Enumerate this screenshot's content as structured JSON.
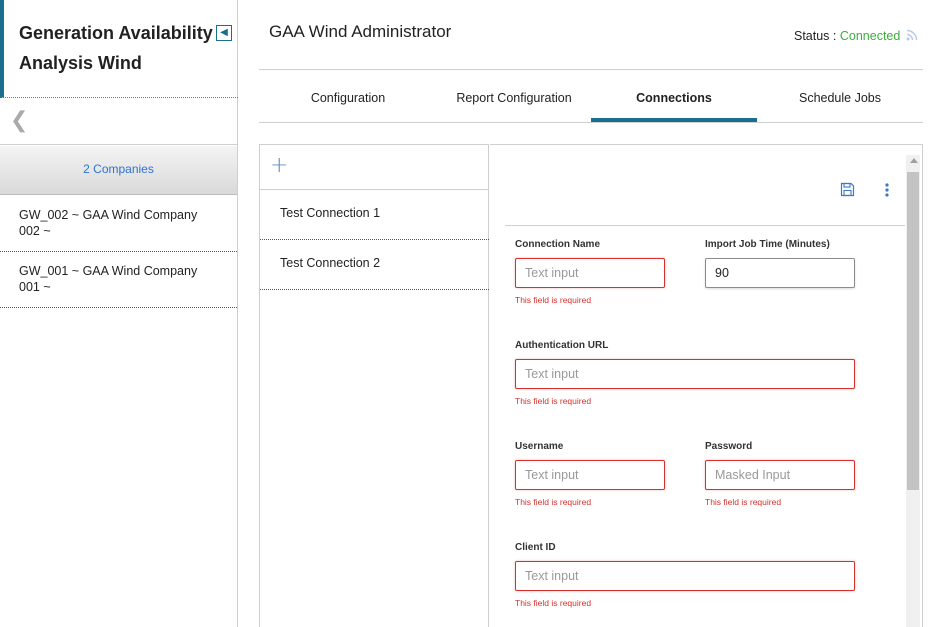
{
  "sidebar": {
    "title": "Generation Availability Analysis Wind",
    "collapse_icon": "chevron-left-box-icon",
    "back_icon": "chevron-left-icon",
    "companies_label": "2 Companies",
    "companies": [
      {
        "line1": "GW_002 ~ GAA Wind Company",
        "line2": "002 ~"
      },
      {
        "line1": "GW_001 ~ GAA Wind Company",
        "line2": "001 ~"
      }
    ]
  },
  "header": {
    "title": "GAA Wind Administrator",
    "status_label": "Status : ",
    "status_value": "Connected",
    "status_icon": "rss-icon"
  },
  "tabs": [
    {
      "label": "Configuration",
      "active": false
    },
    {
      "label": "Report Configuration",
      "active": false
    },
    {
      "label": "Connections",
      "active": true
    },
    {
      "label": "Schedule Jobs",
      "active": false
    }
  ],
  "connections": {
    "add_icon": "plus-icon",
    "items": [
      "Test Connection 1",
      "Test Connection 2"
    ]
  },
  "form": {
    "save_icon": "save-icon",
    "menu_icon": "kebab-menu-icon",
    "connection_name": {
      "label": "Connection Name",
      "placeholder": "Text input",
      "error": "This field is required"
    },
    "import_job_time": {
      "label": "Import Job Time (Minutes)",
      "value": "90"
    },
    "auth_url": {
      "label": "Authentication URL",
      "placeholder": "Text input",
      "error": "This field is required"
    },
    "username": {
      "label": "Username",
      "placeholder": "Text input",
      "error": "This field is required"
    },
    "password": {
      "label": "Password",
      "placeholder": "Masked Input",
      "error": "This field is required"
    },
    "client_id": {
      "label": "Client ID",
      "placeholder": "Text input",
      "error": "This field is required"
    }
  },
  "colors": {
    "accent": "#1a6e8e",
    "status_connected": "#3cae3c",
    "error": "#d8302c",
    "link": "#2d73d3"
  }
}
